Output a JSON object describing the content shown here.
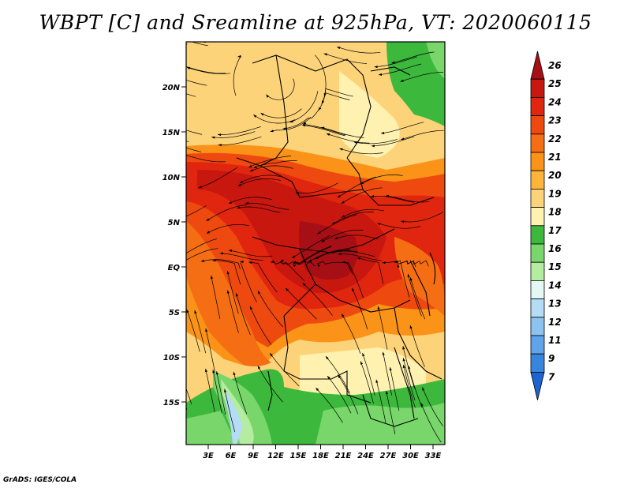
{
  "title": "WBPT [C] and Sreamline at 925hPa, VT: 2020060115",
  "credit": "GrADS: IGES/COLA",
  "map": {
    "lat_labels": [
      "20N",
      "15N",
      "10N",
      "5N",
      "EQ",
      "5S",
      "10S",
      "15S"
    ],
    "lon_labels": [
      "3E",
      "6E",
      "9E",
      "12E",
      "15E",
      "18E",
      "21E",
      "24E",
      "27E",
      "30E",
      "33E"
    ]
  },
  "colorbar": {
    "levels": [
      "26",
      "25",
      "24",
      "23",
      "22",
      "21",
      "20",
      "19",
      "18",
      "17",
      "16",
      "15",
      "14",
      "13",
      "12",
      "11",
      "9",
      "7"
    ],
    "colors": [
      "#a50f15",
      "#c8170f",
      "#e0260f",
      "#ee4a10",
      "#f56e14",
      "#fb9318",
      "#fcb43a",
      "#fdd37a",
      "#fff1b0",
      "#3cb83c",
      "#78d66a",
      "#b4eca0",
      "#e3f7f5",
      "#b5dcf5",
      "#8cc3f0",
      "#5fa4ea",
      "#3885e0",
      "#1e63d2"
    ]
  }
}
